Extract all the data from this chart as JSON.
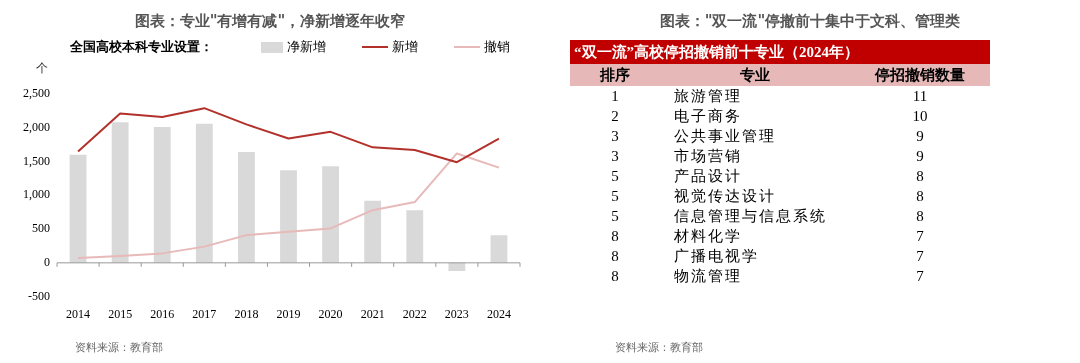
{
  "chart_data": [
    {
      "type": "bar",
      "title": "图表：专业\"有增有减\"，净新增逐年收窄",
      "ylabel": "个",
      "legend_title": "全国高校本科专业设置：",
      "legend": "top",
      "categories": [
        "2014",
        "2015",
        "2016",
        "2017",
        "2018",
        "2019",
        "2020",
        "2021",
        "2022",
        "2023",
        "2024"
      ],
      "series": [
        {
          "name": "净新增",
          "type": "bar",
          "color": "#d9d9d9",
          "values": [
            1600,
            2080,
            2010,
            2060,
            1640,
            1370,
            1430,
            920,
            780,
            -120,
            410
          ]
        },
        {
          "name": "新增",
          "type": "line",
          "color": "#b3312b",
          "values": [
            1650,
            2210,
            2160,
            2290,
            2050,
            1840,
            1940,
            1710,
            1670,
            1490,
            1840
          ]
        },
        {
          "name": "撤销",
          "type": "line",
          "color": "#e8b9b9",
          "values": [
            70,
            100,
            140,
            240,
            410,
            460,
            510,
            780,
            900,
            1620,
            1410
          ]
        }
      ],
      "ylim": [
        -500,
        2500
      ],
      "yticks": [
        {
          "value": -500,
          "label": "-500"
        },
        0,
        500,
        {
          "value": 1000,
          "label": "1,000"
        },
        {
          "value": 1500,
          "label": "1,500"
        },
        {
          "value": 2000,
          "label": "2,000"
        },
        {
          "value": 2500,
          "label": "2,500"
        }
      ],
      "annotations": [
        "资料来源：教育部"
      ]
    },
    {
      "type": "other",
      "title": "图表：\"双一流\"停撤前十集中于文科、管理类",
      "subtitle": "“双一流”高校停招撤销前十专业（2024年）",
      "annotations": [
        "排序",
        "专业",
        "停招撤销数量",
        "资料来源：教育部"
      ],
      "data_labels": true,
      "categories": [
        "旅游管理",
        "电子商务",
        "公共事业管理",
        "市场营销",
        "产品设计",
        "视觉传达设计",
        "信息管理与信息系统",
        "材料化学",
        "广播电视学",
        "物流管理"
      ],
      "series": [
        {
          "values": [
            1,
            2,
            3,
            3,
            5,
            5,
            5,
            8,
            8,
            8
          ]
        },
        {
          "values": [
            11,
            10,
            9,
            9,
            8,
            8,
            8,
            7,
            7,
            7
          ]
        }
      ]
    }
  ]
}
